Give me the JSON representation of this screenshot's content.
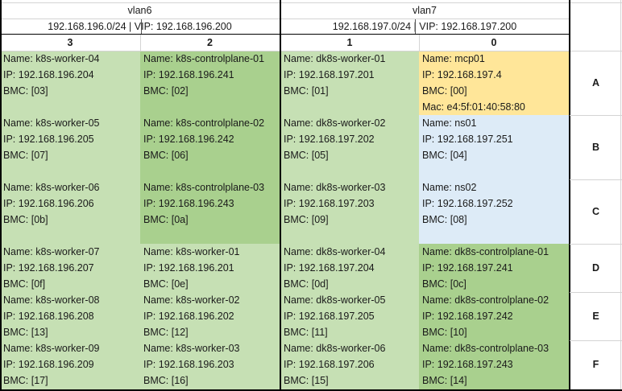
{
  "header": {
    "vlan6": {
      "name": "vlan6",
      "subnet": "192.168.196.0/24 | VIP: 192.168.196.200"
    },
    "vlan7": {
      "name": "vlan7",
      "subnet": "192.168.197.0/24 | VIP: 192.168.197.200"
    },
    "columns": [
      "3",
      "2",
      "1",
      "0"
    ]
  },
  "row_labels": [
    "A",
    "B",
    "C",
    "D",
    "E",
    "F"
  ],
  "colors": {
    "light_green": "#c6e0b4",
    "dark_green": "#a9d08e",
    "yellow": "#ffe699",
    "light_blue": "#ddebf7",
    "grid_line": "#d4d4d4"
  },
  "blocks": [
    {
      "id": "a3",
      "color": "light_green",
      "lines": [
        "Name: k8s-worker-04",
        "IP: 192.168.196.204",
        "BMC: [03]"
      ]
    },
    {
      "id": "a2",
      "color": "dark_green",
      "lines": [
        "Name: k8s-controlplane-01",
        "IP: 192.168.196.241",
        "BMC: [02]"
      ]
    },
    {
      "id": "a1",
      "color": "light_green",
      "lines": [
        "Name: dk8s-worker-01",
        "IP: 192.168.197.201",
        "BMC: [01]"
      ]
    },
    {
      "id": "a0",
      "color": "yellow",
      "lines": [
        "Name: mcp01",
        "IP: 192.168.197.4",
        "BMC: [00]",
        "Mac: e4:5f:01:40:58:80"
      ]
    },
    {
      "id": "b3",
      "color": "light_green",
      "lines": [
        "Name: k8s-worker-05",
        "IP: 192.168.196.205",
        "BMC: [07]"
      ]
    },
    {
      "id": "b2",
      "color": "dark_green",
      "lines": [
        "Name: k8s-controlplane-02",
        "IP: 192.168.196.242",
        "BMC: [06]"
      ]
    },
    {
      "id": "b1",
      "color": "light_green",
      "lines": [
        "Name: dk8s-worker-02",
        "IP: 192.168.197.202",
        "BMC: [05]"
      ]
    },
    {
      "id": "b0",
      "color": "light_blue",
      "lines": [
        "Name: ns01",
        "IP: 192.168.197.251",
        "BMC: [04]"
      ]
    },
    {
      "id": "c3",
      "color": "light_green",
      "lines": [
        "Name: k8s-worker-06",
        "IP: 192.168.196.206",
        "BMC: [0b]"
      ]
    },
    {
      "id": "c2",
      "color": "dark_green",
      "lines": [
        "Name: k8s-controlplane-03",
        "IP: 192.168.196.243",
        "BMC: [0a]"
      ]
    },
    {
      "id": "c1",
      "color": "light_green",
      "lines": [
        "Name: dk8s-worker-03",
        "IP: 192.168.197.203",
        "BMC: [09]"
      ]
    },
    {
      "id": "c0",
      "color": "light_blue",
      "lines": [
        "Name: ns02",
        "IP: 192.168.197.252",
        "BMC: [08]"
      ]
    },
    {
      "id": "d3",
      "color": "light_green",
      "lines": [
        "Name: k8s-worker-07",
        "IP: 192.168.196.207",
        "BMC: [0f]"
      ]
    },
    {
      "id": "d2",
      "color": "light_green",
      "lines": [
        "Name: k8s-worker-01",
        "IP: 192.168.196.201",
        "BMC: [0e]"
      ]
    },
    {
      "id": "d1",
      "color": "light_green",
      "lines": [
        "Name: dk8s-worker-04",
        "IP: 192.168.197.204",
        "BMC: [0d]"
      ]
    },
    {
      "id": "d0",
      "color": "dark_green",
      "lines": [
        "Name: dk8s-controlplane-01",
        "IP: 192.168.197.241",
        "BMC: [0c]"
      ]
    },
    {
      "id": "e3",
      "color": "light_green",
      "lines": [
        "Name: k8s-worker-08",
        "IP: 192.168.196.208",
        "BMC: [13]"
      ]
    },
    {
      "id": "e2",
      "color": "light_green",
      "lines": [
        "Name: k8s-worker-02",
        "IP: 192.168.196.202",
        "BMC: [12]"
      ]
    },
    {
      "id": "e1",
      "color": "light_green",
      "lines": [
        "Name: dk8s-worker-05",
        "IP: 192.168.197.205",
        "BMC: [11]"
      ]
    },
    {
      "id": "e0",
      "color": "dark_green",
      "lines": [
        "Name: dk8s-controlplane-02",
        "IP: 192.168.197.242",
        "BMC: [10]"
      ]
    },
    {
      "id": "f3",
      "color": "light_green",
      "lines": [
        "Name: k8s-worker-09",
        "IP: 192.168.196.209",
        "BMC: [17]"
      ]
    },
    {
      "id": "f2",
      "color": "light_green",
      "lines": [
        "Name: k8s-worker-03",
        "IP: 192.168.196.203",
        "BMC: [16]"
      ]
    },
    {
      "id": "f1",
      "color": "light_green",
      "lines": [
        "Name: dk8s-worker-06",
        "IP: 192.168.197.206",
        "BMC: [15]"
      ]
    },
    {
      "id": "f0",
      "color": "dark_green",
      "lines": [
        "Name: dk8s-controlplane-03",
        "IP: 192.168.197.243",
        "BMC: [14]"
      ]
    }
  ]
}
